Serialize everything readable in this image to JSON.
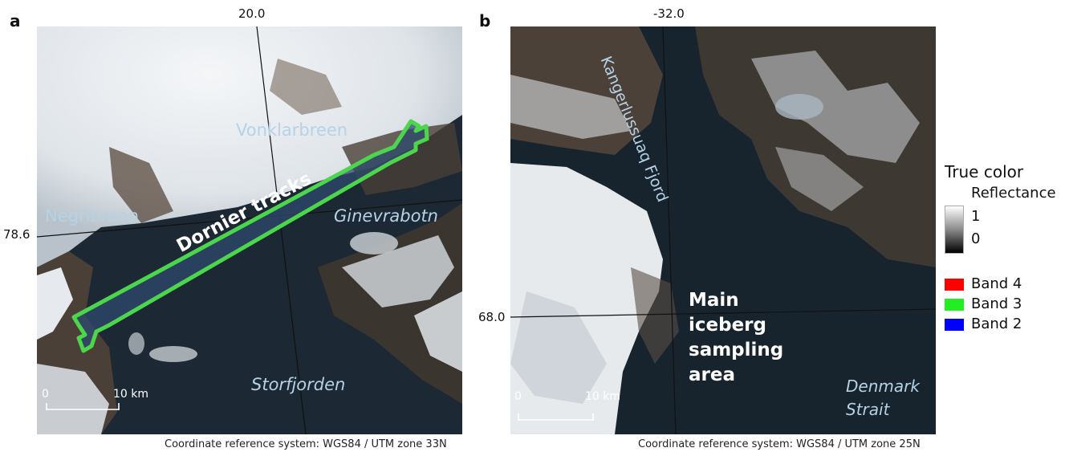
{
  "panel_a": {
    "letter": "a",
    "lon_label": "20.0",
    "lat_label": "78.6",
    "places": {
      "vonkarbreen": "Vonklarbreen",
      "negribreen": "Negribreen",
      "ginevrabotn": "Ginevrabotn",
      "storfjorden": "Storfjorden"
    },
    "tracks_label": "Dornier tracks",
    "scale_start": "0",
    "scale_end": "10 km",
    "crs": "Coordinate reference system: WGS84 / UTM zone 33N"
  },
  "panel_b": {
    "letter": "b",
    "lon_label": "-32.0",
    "lat_label": "68.0",
    "places": {
      "fjord": "Kangerlussuaq Fjord",
      "strait_line1": "Denmark",
      "strait_line2": "Strait"
    },
    "sampling_area": [
      "Main",
      "iceberg",
      "sampling",
      "area"
    ],
    "scale_start": "0",
    "scale_end": "10 km",
    "crs": "Coordinate reference system: WGS84 / UTM zone 25N"
  },
  "legend": {
    "title": "True color",
    "subtitle": "Reflectance",
    "max_label": "1",
    "min_label": "0",
    "bands": [
      {
        "label": "Band 4",
        "color": "#ff0000"
      },
      {
        "label": "Band 3",
        "color": "#22ee22"
      },
      {
        "label": "Band 2",
        "color": "#0000ff"
      }
    ]
  },
  "colors": {
    "track_outline": "#4cd64c",
    "place_label": "#b5d2e6",
    "water": "#1a2530",
    "ice": "#e8ecef"
  }
}
